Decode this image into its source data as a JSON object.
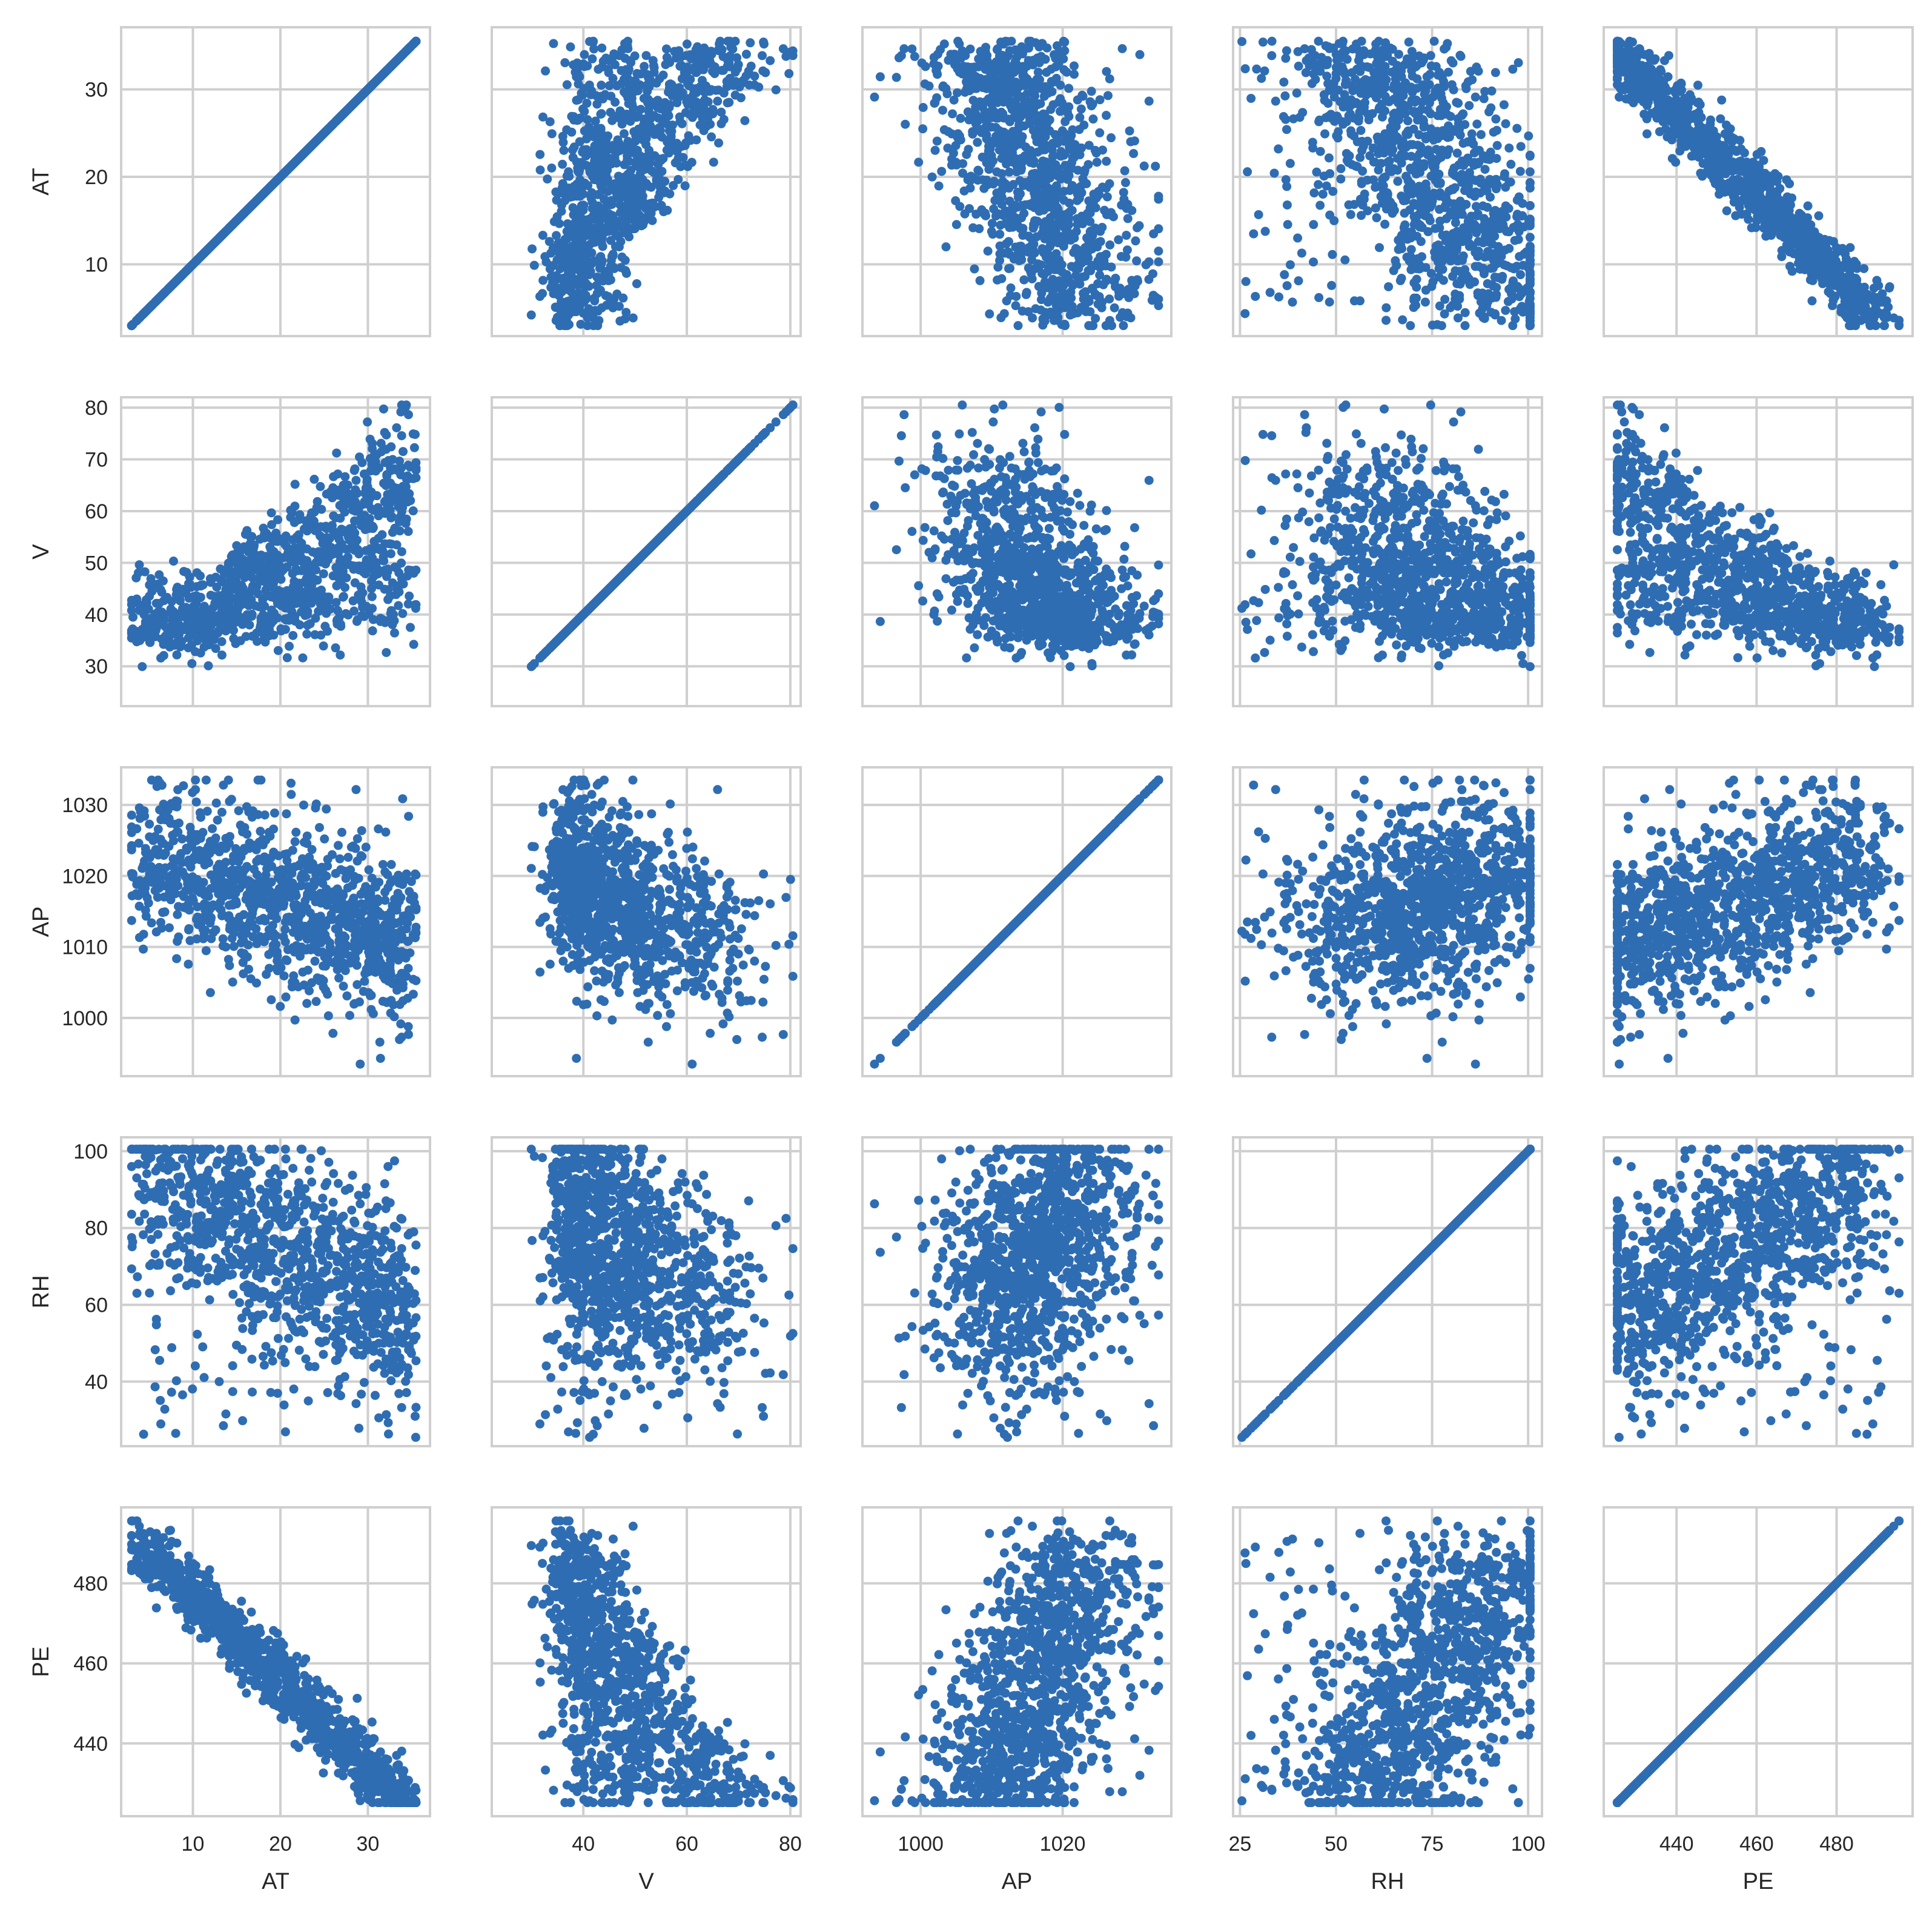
{
  "chart_data": {
    "type": "scatter",
    "variables": [
      "AT",
      "V",
      "AP",
      "RH",
      "PE"
    ],
    "ticks": {
      "AT": [
        "10",
        "20",
        "30"
      ],
      "V": [
        "30",
        "40",
        "50",
        "60",
        "70",
        "80"
      ],
      "AP": [
        "1000",
        "1010",
        "1020",
        "1030"
      ],
      "RH": [
        "25",
        "40",
        "50",
        "60",
        "75",
        "80",
        "100"
      ],
      "PE": [
        "440",
        "460",
        "480"
      ]
    },
    "row_tick_values": {
      "AT": [
        10,
        20,
        30
      ],
      "V": [
        30,
        40,
        50,
        60,
        70,
        80
      ],
      "AP": [
        1000,
        1010,
        1020,
        1030
      ],
      "RH": [
        40,
        60,
        80,
        100
      ],
      "PE": [
        440,
        460,
        480
      ]
    },
    "col_tick_values": {
      "AT": [
        10,
        20,
        30
      ],
      "V": [
        40,
        60,
        80
      ],
      "AP": [
        1000,
        1020
      ],
      "RH": [
        25,
        50,
        75,
        100
      ],
      "PE": [
        440,
        460,
        480
      ]
    },
    "axis_ranges": {
      "AT": [
        1.8,
        37.1
      ],
      "V": [
        22.3,
        82.0
      ],
      "AP": [
        991.8,
        1035.3
      ],
      "RH": [
        23.2,
        103.6
      ],
      "PE": [
        421.8,
        499.0
      ]
    },
    "diagonal": "identity-line",
    "grid": true,
    "point_color": "#2f6db3",
    "point_count": 1100
  }
}
